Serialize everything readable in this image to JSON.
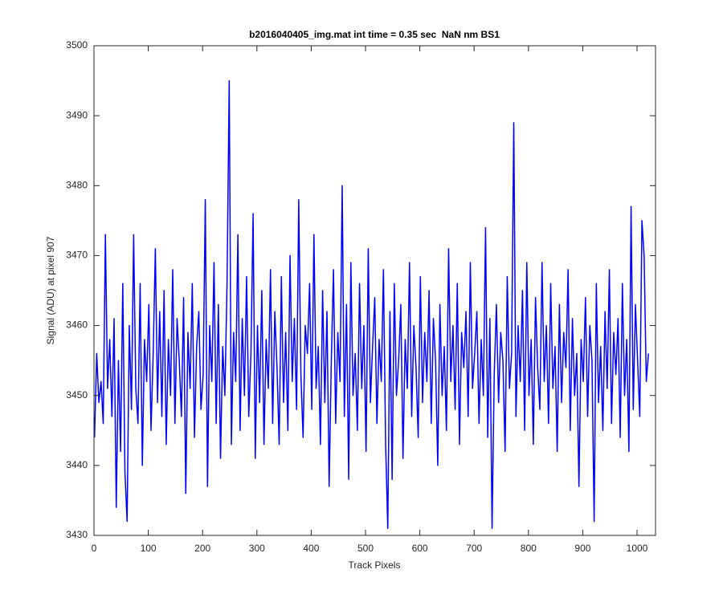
{
  "chart_data": {
    "type": "line",
    "title": "b2016040405_img.mat int time = 0.35 sec  NaN nm BS1",
    "x_label": "Track Pixels",
    "y_label": "Signal (ADU) at pixel 907",
    "xlim": [
      0,
      1034
    ],
    "xticks": [
      0,
      100,
      200,
      300,
      400,
      500,
      600,
      700,
      800,
      900,
      1000
    ],
    "ylim": [
      3430,
      3500
    ],
    "yticks": [
      3430,
      3440,
      3450,
      3460,
      3470,
      3480,
      3490,
      3500
    ],
    "x": [
      1,
      5,
      9,
      13,
      17,
      21,
      25,
      29,
      33,
      37,
      41,
      45,
      49,
      53,
      57,
      61,
      65,
      69,
      73,
      77,
      81,
      85,
      89,
      93,
      97,
      101,
      105,
      109,
      113,
      117,
      121,
      125,
      129,
      133,
      137,
      141,
      145,
      149,
      153,
      157,
      161,
      165,
      169,
      173,
      177,
      181,
      185,
      189,
      193,
      197,
      201,
      205,
      209,
      213,
      217,
      221,
      225,
      229,
      233,
      237,
      241,
      245,
      249,
      253,
      257,
      261,
      265,
      269,
      273,
      277,
      281,
      285,
      289,
      293,
      297,
      301,
      305,
      309,
      313,
      317,
      321,
      325,
      329,
      333,
      337,
      341,
      345,
      349,
      353,
      357,
      361,
      365,
      369,
      373,
      377,
      381,
      385,
      389,
      393,
      397,
      401,
      405,
      409,
      413,
      417,
      421,
      425,
      429,
      433,
      437,
      441,
      445,
      449,
      453,
      457,
      461,
      465,
      469,
      473,
      477,
      481,
      485,
      489,
      493,
      497,
      501,
      505,
      509,
      513,
      517,
      521,
      525,
      529,
      533,
      537,
      541,
      545,
      549,
      553,
      557,
      561,
      565,
      569,
      573,
      577,
      581,
      585,
      589,
      593,
      597,
      601,
      605,
      609,
      613,
      617,
      621,
      625,
      629,
      633,
      637,
      641,
      645,
      649,
      653,
      657,
      661,
      665,
      669,
      673,
      677,
      681,
      685,
      689,
      693,
      697,
      701,
      705,
      709,
      713,
      717,
      721,
      725,
      729,
      733,
      737,
      741,
      745,
      749,
      753,
      757,
      761,
      765,
      769,
      773,
      777,
      781,
      785,
      789,
      793,
      797,
      801,
      805,
      809,
      813,
      817,
      821,
      825,
      829,
      833,
      837,
      841,
      845,
      849,
      853,
      857,
      861,
      865,
      869,
      873,
      877,
      881,
      885,
      889,
      893,
      897,
      901,
      905,
      909,
      913,
      917,
      921,
      925,
      929,
      933,
      937,
      941,
      945,
      949,
      953,
      957,
      961,
      965,
      969,
      973,
      977,
      981,
      985,
      989,
      993,
      997,
      1001,
      1005,
      1009,
      1013,
      1017,
      1021
    ],
    "series": [
      {
        "color": "#0000ff",
        "values": [
          3444,
          3456,
          3449,
          3452,
          3446,
          3473,
          3451,
          3458,
          3447,
          3461,
          3434,
          3455,
          3442,
          3466,
          3439,
          3432,
          3460,
          3448,
          3473,
          3451,
          3446,
          3466,
          3440,
          3458,
          3452,
          3463,
          3445,
          3456,
          3471,
          3449,
          3462,
          3447,
          3465,
          3443,
          3458,
          3450,
          3468,
          3446,
          3461,
          3455,
          3447,
          3464,
          3436,
          3459,
          3451,
          3466,
          3444,
          3457,
          3462,
          3448,
          3453,
          3478,
          3437,
          3460,
          3452,
          3469,
          3446,
          3463,
          3441,
          3457,
          3450,
          3466,
          3495,
          3443,
          3459,
          3452,
          3473,
          3445,
          3461,
          3450,
          3467,
          3447,
          3456,
          3476,
          3441,
          3460,
          3449,
          3465,
          3443,
          3458,
          3451,
          3468,
          3446,
          3462,
          3454,
          3443,
          3467,
          3449,
          3459,
          3445,
          3470,
          3452,
          3461,
          3448,
          3478,
          3453,
          3444,
          3460,
          3456,
          3466,
          3448,
          3473,
          3451,
          3457,
          3443,
          3465,
          3449,
          3462,
          3437,
          3455,
          3468,
          3446,
          3459,
          3452,
          3480,
          3447,
          3463,
          3438,
          3469,
          3450,
          3456,
          3445,
          3466,
          3451,
          3460,
          3442,
          3471,
          3449,
          3457,
          3464,
          3446,
          3458,
          3452,
          3468,
          3443,
          3431,
          3462,
          3438,
          3466,
          3450,
          3455,
          3463,
          3441,
          3458,
          3451,
          3469,
          3447,
          3460,
          3454,
          3444,
          3467,
          3449,
          3459,
          3452,
          3465,
          3446,
          3461,
          3455,
          3440,
          3463,
          3450,
          3457,
          3445,
          3471,
          3452,
          3460,
          3448,
          3466,
          3443,
          3459,
          3454,
          3462,
          3447,
          3469,
          3451,
          3456,
          3462,
          3446,
          3458,
          3450,
          3474,
          3444,
          3461,
          3431,
          3453,
          3463,
          3449,
          3459,
          3455,
          3442,
          3467,
          3451,
          3456,
          3489,
          3447,
          3460,
          3452,
          3465,
          3445,
          3469,
          3450,
          3458,
          3443,
          3464,
          3454,
          3448,
          3469,
          3452,
          3460,
          3446,
          3466,
          3451,
          3457,
          3442,
          3463,
          3449,
          3459,
          3454,
          3468,
          3445,
          3461,
          3450,
          3456,
          3437,
          3458,
          3452,
          3464,
          3447,
          3460,
          3455,
          3432,
          3466,
          3449,
          3457,
          3445,
          3462,
          3451,
          3468,
          3446,
          3459,
          3453,
          3461,
          3444,
          3466,
          3450,
          3458,
          3442,
          3477,
          3448,
          3463,
          3455,
          3447,
          3475,
          3470,
          3452,
          3456
        ]
      }
    ]
  }
}
